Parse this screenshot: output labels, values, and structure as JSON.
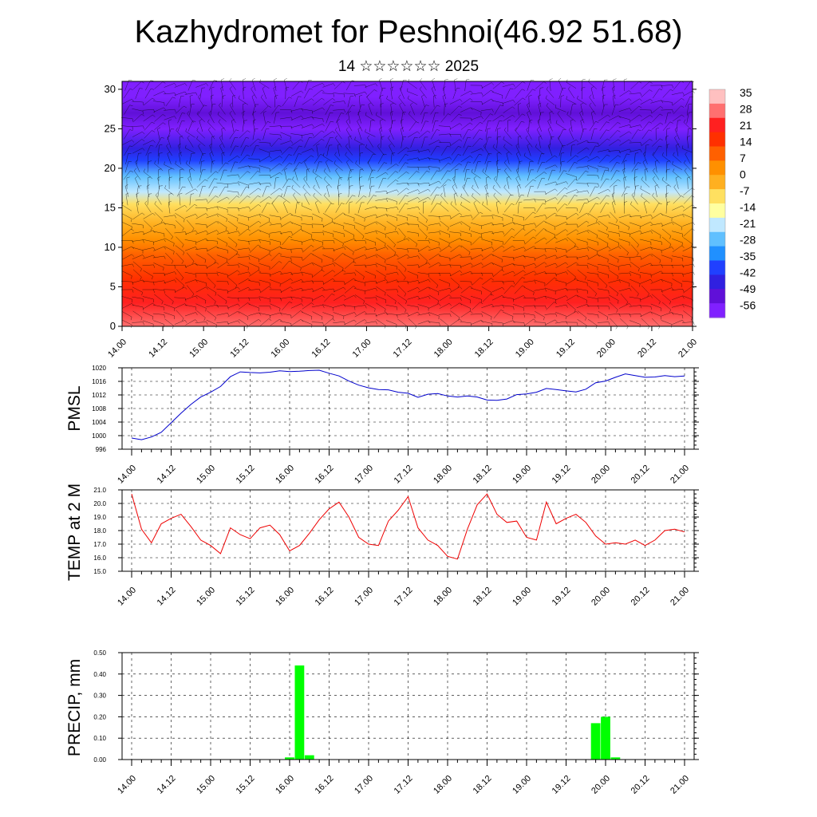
{
  "page": {
    "title": "Kazhydromet for Peshnoi(46.92 51.68)",
    "subtitle": "14 ☆☆☆☆☆☆ 2025"
  },
  "time_labels": [
    "14.00",
    "14.12",
    "15.00",
    "15.12",
    "16.00",
    "16.12",
    "17.00",
    "17.12",
    "18.00",
    "18.12",
    "19.00",
    "19.12",
    "20.00",
    "20.12",
    "21.00"
  ],
  "chart_data": [
    {
      "type": "heatmap",
      "title": "",
      "x_tick_labels": [
        "14.00",
        "14.12",
        "15.00",
        "15.12",
        "16.00",
        "16.12",
        "17.00",
        "17.12",
        "18.00",
        "18.12",
        "19.00",
        "19.12",
        "20.00",
        "20.12",
        "21.00"
      ],
      "y_ticks": [
        0,
        5,
        10,
        15,
        20,
        25,
        30
      ],
      "ylim": [
        0,
        31
      ],
      "colorbar": {
        "labels": [
          "35",
          "28",
          "21",
          "14",
          "7",
          "0",
          "-7",
          "-14",
          "-21",
          "-28",
          "-35",
          "-42",
          "-49",
          "-56"
        ],
        "colors": [
          "#ffc0c0",
          "#ff7070",
          "#ff2020",
          "#ff3000",
          "#ff6000",
          "#ff9000",
          "#ffb020",
          "#ffe060",
          "#ffffa0",
          "#c0e8ff",
          "#60c0ff",
          "#2090ff",
          "#2040ff",
          "#3020e0",
          "#6010d8",
          "#8020ff"
        ]
      },
      "profile": [
        {
          "h": 0,
          "t": 26
        },
        {
          "h": 3,
          "t": 22
        },
        {
          "h": 6,
          "t": 14
        },
        {
          "h": 9,
          "t": 8
        },
        {
          "h": 11,
          "t": 3
        },
        {
          "h": 13,
          "t": -3
        },
        {
          "h": 15.5,
          "t": -12
        },
        {
          "h": 17,
          "t": -20
        },
        {
          "h": 19,
          "t": -30
        },
        {
          "h": 21,
          "t": -40
        },
        {
          "h": 22.5,
          "t": -50
        },
        {
          "h": 25,
          "t": -58
        },
        {
          "h": 27,
          "t": -52
        },
        {
          "h": 29,
          "t": -60
        },
        {
          "h": 31,
          "t": -64
        }
      ],
      "note_wind_barbs": "wind barbs drawn across field"
    },
    {
      "type": "line",
      "ylabel": "PMSL",
      "yticks": [
        "1020",
        "1016",
        "1012",
        "1008",
        "1004",
        "1000",
        "996"
      ],
      "ylim": [
        996,
        1020
      ],
      "x_tick_labels": [
        "14.00",
        "14.12",
        "15.00",
        "15.12",
        "16.00",
        "16.12",
        "17.00",
        "17.12",
        "18.00",
        "18.12",
        "19.00",
        "19.12",
        "20.00",
        "20.12",
        "21.00"
      ],
      "color": "#0000cc",
      "x": [
        0,
        3,
        6,
        9,
        12,
        15,
        18,
        21,
        24,
        27,
        30,
        33,
        36,
        39,
        42,
        45,
        48,
        51,
        54,
        57,
        60,
        63,
        66,
        69,
        72,
        75,
        78,
        81,
        84,
        87,
        90,
        93,
        96,
        99,
        102,
        105,
        108,
        111,
        114,
        117,
        120,
        123,
        126,
        129,
        132,
        135,
        138,
        141,
        144,
        147,
        150,
        153,
        156,
        159,
        162,
        165,
        168
      ],
      "values": [
        999.3,
        998.8,
        999.6,
        1001.0,
        1003.8,
        1006.6,
        1009.2,
        1011.4,
        1012.8,
        1014.5,
        1017.4,
        1018.8,
        1018.6,
        1018.5,
        1018.7,
        1019.1,
        1018.9,
        1019.0,
        1019.2,
        1019.3,
        1018.4,
        1017.6,
        1016.1,
        1014.9,
        1014.1,
        1013.6,
        1013.5,
        1012.8,
        1012.5,
        1011.3,
        1012.2,
        1012.4,
        1011.7,
        1011.4,
        1011.7,
        1011.4,
        1010.5,
        1010.4,
        1010.8,
        1012.1,
        1012.3,
        1012.8,
        1013.9,
        1013.6,
        1013.2,
        1012.9,
        1013.7,
        1015.6,
        1016.1,
        1017.2,
        1018.2,
        1017.7,
        1017.2,
        1017.3,
        1017.7,
        1017.4,
        1017.6
      ]
    },
    {
      "type": "line",
      "ylabel": "TEMP at 2 M",
      "yticks": [
        "21.0",
        "20.0",
        "19.0",
        "18.0",
        "17.0",
        "16.0",
        "15.0"
      ],
      "ylim": [
        15,
        21
      ],
      "x_tick_labels": [
        "14.00",
        "14.12",
        "15.00",
        "15.12",
        "16.00",
        "16.12",
        "17.00",
        "17.12",
        "18.00",
        "18.12",
        "19.00",
        "19.12",
        "20.00",
        "20.12",
        "21.00"
      ],
      "color": "#ee0000",
      "x": [
        0,
        3,
        6,
        9,
        12,
        15,
        18,
        21,
        24,
        27,
        30,
        33,
        36,
        39,
        42,
        45,
        48,
        51,
        54,
        57,
        60,
        63,
        66,
        69,
        72,
        75,
        78,
        81,
        84,
        87,
        90,
        93,
        96,
        99,
        102,
        105,
        108,
        111,
        114,
        117,
        120,
        123,
        126,
        129,
        132,
        135,
        138,
        141,
        144,
        147,
        150,
        153,
        156,
        159,
        162,
        165,
        168
      ],
      "values": [
        20.7,
        18.1,
        17.1,
        18.5,
        18.9,
        19.2,
        18.3,
        17.3,
        16.9,
        16.3,
        18.2,
        17.7,
        17.4,
        18.2,
        18.4,
        17.7,
        16.5,
        16.9,
        17.8,
        18.8,
        19.6,
        20.1,
        19.0,
        17.5,
        17.0,
        16.9,
        18.7,
        19.5,
        20.5,
        18.2,
        17.3,
        16.9,
        16.1,
        15.9,
        18.1,
        19.9,
        20.7,
        19.2,
        18.6,
        18.7,
        17.5,
        17.3,
        20.1,
        18.5,
        18.9,
        19.2,
        18.6,
        17.6,
        17.0,
        17.1,
        17.0,
        17.3,
        16.9,
        17.3,
        18.0,
        18.1,
        17.9
      ]
    },
    {
      "type": "bar",
      "ylabel": "PRECIP, mm",
      "yticks": [
        "0.50",
        "0.40",
        "0.30",
        "0.20",
        "0.10",
        "0.00"
      ],
      "ylim": [
        0,
        0.5
      ],
      "x_tick_labels": [
        "14.00",
        "14.12",
        "15.00",
        "15.12",
        "16.00",
        "16.12",
        "17.00",
        "17.12",
        "18.00",
        "18.12",
        "19.00",
        "19.12",
        "20.00",
        "20.12",
        "21.00"
      ],
      "color": "#00ff00",
      "x": [
        48,
        51,
        54,
        141,
        144,
        147
      ],
      "values": [
        0.01,
        0.44,
        0.02,
        0.17,
        0.2,
        0.01
      ]
    }
  ]
}
